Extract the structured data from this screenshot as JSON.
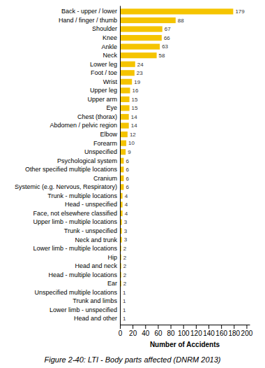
{
  "chart_data": {
    "type": "bar",
    "orientation": "horizontal",
    "title": "Figure 2-40: LTI - Body parts affected (DNRM 2013)",
    "xlabel": "Number of Accidents",
    "categories": [
      "Back - upper / lower",
      "Hand / finger / thumb",
      "Shoulder",
      "Knee",
      "Ankle",
      "Neck",
      "Lower leg",
      "Foot / toe",
      "Wrist",
      "Upper leg",
      "Upper arm",
      "Eye",
      "Chest (thorax)",
      "Abdomen / pelvic region",
      "Elbow",
      "Forearm",
      "Unspecified",
      "Psychological system",
      "Other specified multiple locations",
      "Cranium",
      "Systemic (e.g. Nervous, Respiratory)",
      "Trunk - multiple locations",
      "Head - unspecified",
      "Face, not elsewhere classified",
      "Upper limb - multiple locations",
      "Trunk - unspecified",
      "Neck and trunk",
      "Lower limb - multiple locations",
      "Hip",
      "Head and neck",
      "Head - multiple locations",
      "Ear",
      "Unspecified multiple locations",
      "Trunk and limbs",
      "Lower limb - unspecified",
      "Head and other"
    ],
    "values": [
      179,
      88,
      67,
      66,
      63,
      58,
      24,
      23,
      19,
      16,
      15,
      15,
      14,
      14,
      12,
      10,
      9,
      6,
      6,
      6,
      6,
      4,
      4,
      4,
      3,
      3,
      3,
      2,
      2,
      2,
      2,
      2,
      1,
      1,
      1,
      1
    ],
    "color": "#F5C400",
    "xlim": [
      0,
      205
    ],
    "xticks": [
      0,
      20,
      40,
      60,
      80,
      100,
      120,
      140,
      160,
      180,
      200
    ],
    "data_labels": true,
    "grid": false
  }
}
